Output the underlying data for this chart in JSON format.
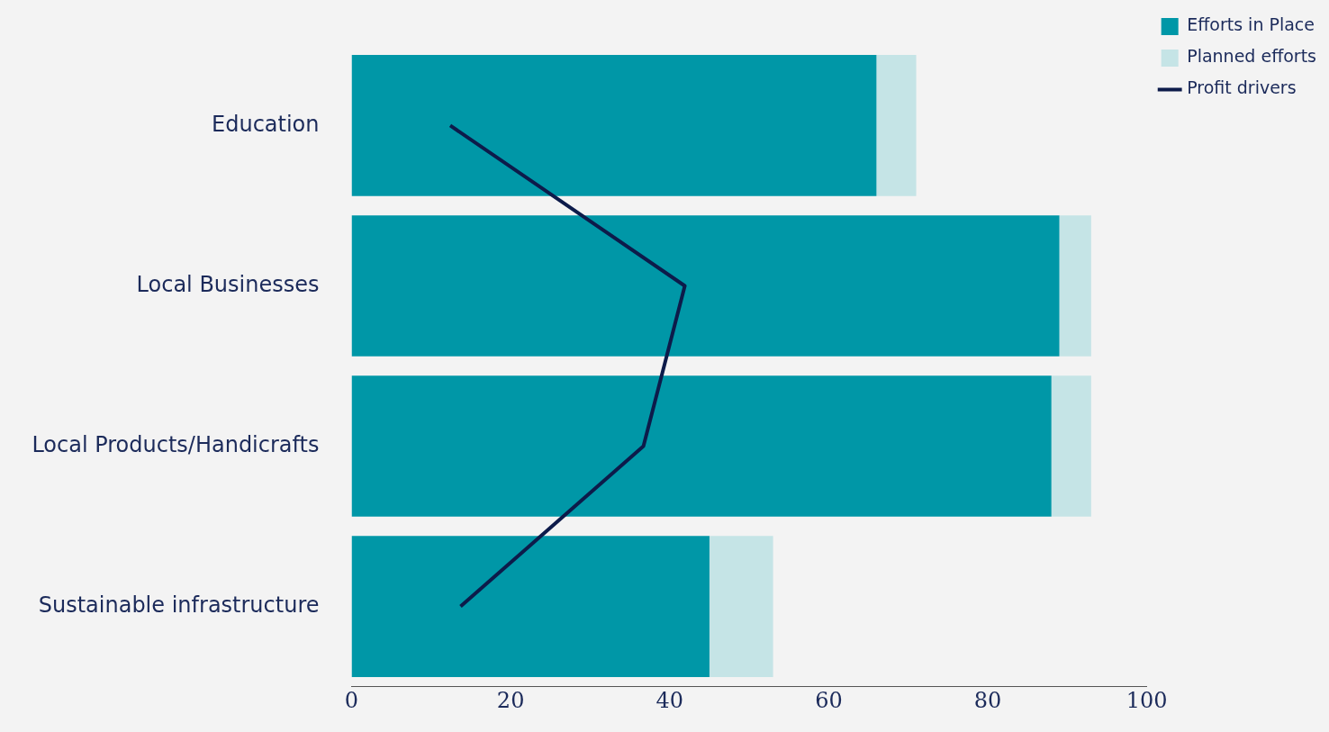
{
  "chart_data": {
    "type": "bar",
    "orientation": "horizontal",
    "stacked": true,
    "categories": [
      "Education",
      "Local Businesses",
      "Local Products/Handicrafts",
      "Sustainable infrastructure"
    ],
    "series": [
      {
        "name": "Efforts in Place",
        "color": "#0097a7",
        "values": [
          66,
          89,
          88,
          45
        ]
      },
      {
        "name": "Planned efforts",
        "color": "#c5e4e6",
        "values": [
          5,
          4,
          5,
          8
        ]
      },
      {
        "name": "Profit drivers",
        "type": "line",
        "color": "#0d1b4a",
        "values": [
          12.4,
          41.9,
          36.7,
          13.7
        ]
      }
    ],
    "xlim": [
      0,
      100
    ],
    "xticks": [
      0,
      20,
      40,
      60,
      80,
      100
    ],
    "grid": false,
    "legend": "top right",
    "line_style": "solid"
  }
}
